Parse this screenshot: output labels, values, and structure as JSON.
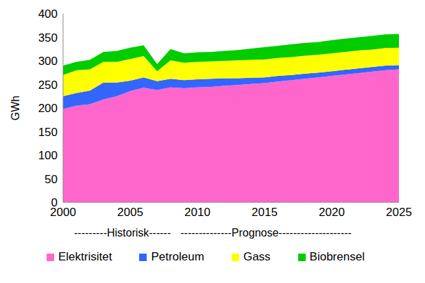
{
  "chart_data": {
    "type": "area",
    "stacked": true,
    "y_label": "GWh",
    "annotations": [
      "---------Historisk------",
      "--------------Prognose--------------------"
    ],
    "x": [
      2000,
      2001,
      2002,
      2003,
      2004,
      2005,
      2006,
      2007,
      2008,
      2009,
      2010,
      2011,
      2012,
      2013,
      2014,
      2015,
      2016,
      2017,
      2018,
      2019,
      2020,
      2021,
      2022,
      2023,
      2024,
      2025
    ],
    "series": [
      {
        "name": "Elektrisitet",
        "color": "#ff66cc",
        "values": [
          198,
          205,
          208,
          218,
          225,
          236,
          243,
          238,
          244,
          242,
          244,
          245,
          247,
          249,
          251,
          253,
          256,
          259,
          262,
          265,
          268,
          271,
          274,
          277,
          280,
          282
        ]
      },
      {
        "name": "Petroleum",
        "color": "#3366ff",
        "values": [
          27,
          27,
          29,
          36,
          29,
          22,
          22,
          19,
          18,
          17,
          17,
          17,
          16,
          14,
          13,
          12,
          12,
          11,
          11,
          10,
          10,
          10,
          10,
          10,
          10,
          9
        ]
      },
      {
        "name": "Gass",
        "color": "#ffff00",
        "values": [
          45,
          48,
          45,
          44,
          44,
          46,
          45,
          21,
          39,
          37,
          37,
          37,
          37,
          38,
          38,
          38,
          38,
          38,
          38,
          38,
          38,
          38,
          38,
          37,
          37,
          37
        ]
      },
      {
        "name": "Biobrensel",
        "color": "#00cc00",
        "values": [
          20,
          18,
          20,
          21,
          23,
          24,
          23,
          15,
          24,
          20,
          20,
          20,
          21,
          22,
          24,
          26,
          26,
          27,
          27,
          27,
          28,
          28,
          28,
          29,
          29,
          29
        ]
      }
    ],
    "xlim": [
      2000,
      2025
    ],
    "xticks": [
      2000,
      2005,
      2010,
      2015,
      2020,
      2025
    ],
    "ylim": [
      0,
      400
    ],
    "yticks": [
      0,
      50,
      100,
      150,
      200,
      250,
      300,
      350,
      400
    ],
    "grid": false,
    "legend": "bottom"
  }
}
